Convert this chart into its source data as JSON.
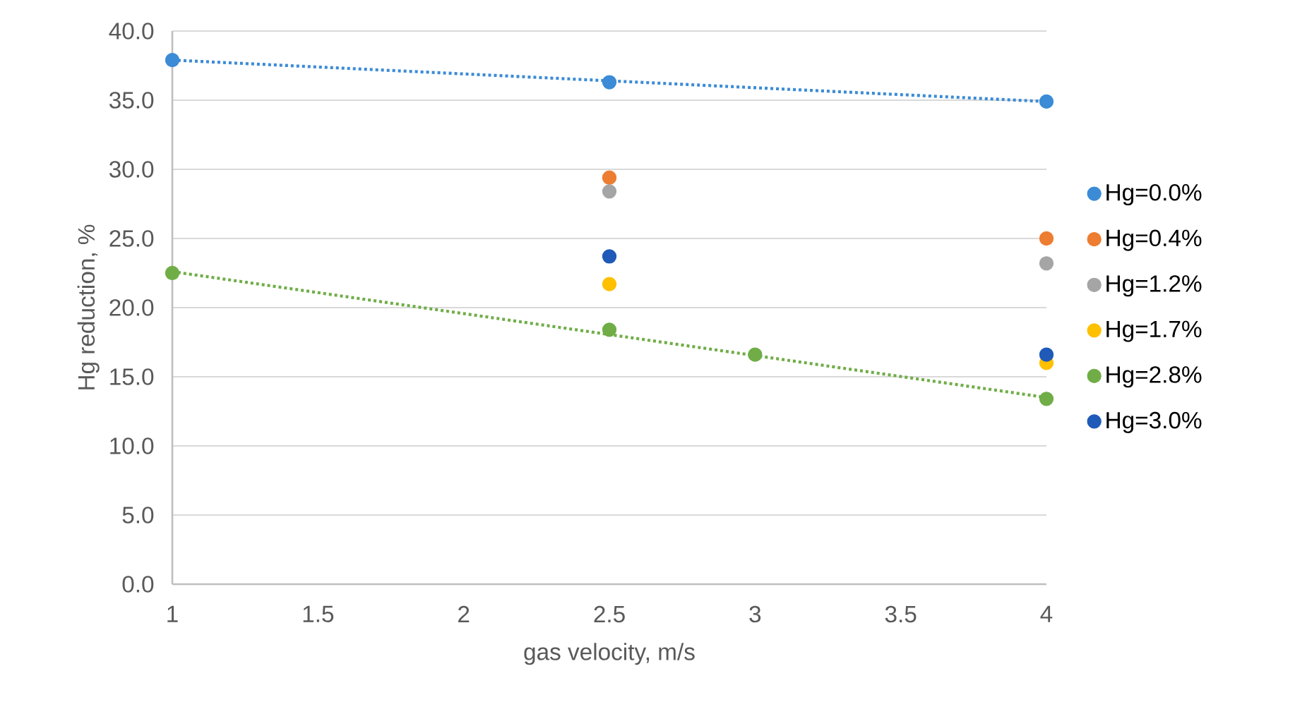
{
  "chart_data": {
    "type": "scatter",
    "xlabel": "gas velocity, m/s",
    "ylabel": "Hg reduction, %",
    "xlim": [
      1,
      4
    ],
    "ylim": [
      0,
      40
    ],
    "xticks": [
      1,
      1.5,
      2,
      2.5,
      3,
      3.5,
      4
    ],
    "yticks": [
      {
        "value": 0,
        "label": "0.0"
      },
      {
        "value": 5,
        "label": "5.0"
      },
      {
        "value": 10,
        "label": "10.0"
      },
      {
        "value": 15,
        "label": "15.0"
      },
      {
        "value": 20,
        "label": "20.0"
      },
      {
        "value": 25,
        "label": "25.0"
      },
      {
        "value": 30,
        "label": "30.0"
      },
      {
        "value": 35,
        "label": "35.0"
      },
      {
        "value": 40,
        "label": "40.0"
      }
    ],
    "grid": "y",
    "legend": "right",
    "marker": "circle",
    "series": [
      {
        "name": "Hg=0.0%",
        "color": "#3B8BD6",
        "x": [
          1,
          2.5,
          4
        ],
        "values": [
          37.9,
          36.3,
          34.9
        ]
      },
      {
        "name": "Hg=0.4%",
        "color": "#ED7D31",
        "x": [
          2.5,
          4
        ],
        "values": [
          29.4,
          25.0
        ]
      },
      {
        "name": "Hg=1.2%",
        "color": "#A5A5A5",
        "x": [
          2.5,
          4
        ],
        "values": [
          28.4,
          23.2
        ]
      },
      {
        "name": "Hg=1.7%",
        "color": "#FFC000",
        "x": [
          2.5,
          4
        ],
        "values": [
          21.7,
          16.0
        ]
      },
      {
        "name": "Hg=2.8%",
        "color": "#70AD47",
        "x": [
          1,
          2.5,
          3,
          4
        ],
        "values": [
          22.5,
          18.4,
          16.6,
          13.4
        ]
      },
      {
        "name": "Hg=3.0%",
        "color": "#1F5AB8",
        "x": [
          2.5,
          4
        ],
        "values": [
          23.7,
          16.6
        ]
      },
      {
        "type": "line",
        "color": "#3B8BD6",
        "line_style": "dotted",
        "marker": "none",
        "x": [
          1,
          4
        ],
        "values": [
          37.9,
          34.9
        ]
      },
      {
        "type": "line",
        "color": "#70AD47",
        "line_style": "dotted",
        "marker": "none",
        "x": [
          1,
          4
        ],
        "values": [
          22.6,
          13.5
        ]
      }
    ]
  }
}
